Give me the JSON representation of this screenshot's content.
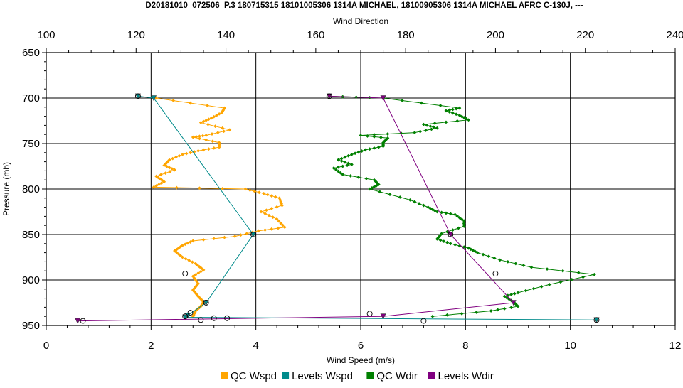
{
  "chart_data": {
    "type": "line",
    "title": "D20181010_072506_P.3 180715315 18101005306 1314A MICHAEL, 18100905306 1314A MICHAEL AFRC C-130J, ---",
    "xlabel_bottom": "Wind Speed (m/s)",
    "xlabel_top": "Wind Direction",
    "ylabel": "Pressure (mb)",
    "xlim_bottom": [
      0,
      12
    ],
    "xlim_top": [
      100,
      240
    ],
    "ylim": [
      650,
      950
    ],
    "y_inverted": true,
    "grid": true,
    "legend_position": "bottom",
    "x_ticks_bottom": [
      "0",
      "2",
      "4",
      "6",
      "8",
      "10",
      "12"
    ],
    "x_ticks_top": [
      "100",
      "120",
      "140",
      "160",
      "180",
      "200",
      "220",
      "240"
    ],
    "y_ticks": [
      "650",
      "700",
      "750",
      "800",
      "850",
      "900",
      "950"
    ],
    "series": [
      {
        "name": "QC Wspd",
        "axis": "bottom",
        "color": "#FFA500",
        "marker": "diamond",
        "points": [
          [
            2.1,
            700
          ],
          [
            3.4,
            711
          ],
          [
            3.35,
            716
          ],
          [
            3.15,
            722
          ],
          [
            2.95,
            727
          ],
          [
            3.5,
            735
          ],
          [
            3.05,
            741
          ],
          [
            2.8,
            743
          ],
          [
            3.3,
            749
          ],
          [
            3.3,
            754
          ],
          [
            2.9,
            758
          ],
          [
            2.6,
            762
          ],
          [
            2.35,
            768
          ],
          [
            2.25,
            774
          ],
          [
            2.45,
            779
          ],
          [
            2.1,
            786
          ],
          [
            2.25,
            792
          ],
          [
            2.05,
            798
          ],
          [
            3.8,
            800
          ],
          [
            4.15,
            805
          ],
          [
            4.45,
            810
          ],
          [
            4.5,
            818
          ],
          [
            4.1,
            825
          ],
          [
            4.4,
            833
          ],
          [
            4.55,
            842
          ],
          [
            4.05,
            846
          ],
          [
            3.6,
            852
          ],
          [
            2.8,
            857
          ],
          [
            2.6,
            862
          ],
          [
            2.45,
            868
          ],
          [
            2.6,
            875
          ],
          [
            2.85,
            882
          ],
          [
            3.0,
            889
          ],
          [
            2.8,
            896
          ],
          [
            2.9,
            904
          ],
          [
            2.8,
            911
          ],
          [
            2.9,
            918
          ],
          [
            3.0,
            924
          ],
          [
            2.95,
            929
          ],
          [
            2.85,
            934
          ],
          [
            2.8,
            940
          ]
        ]
      },
      {
        "name": "Levels Wspd",
        "axis": "bottom",
        "color": "#008B8B",
        "marker": "triangle-down",
        "points": [
          [
            1.75,
            698
          ],
          [
            2.05,
            700
          ],
          [
            3.95,
            850
          ],
          [
            3.05,
            925
          ],
          [
            2.7,
            939
          ],
          [
            2.65,
            941
          ],
          [
            10.5,
            944
          ]
        ]
      },
      {
        "name": "QC Wdir",
        "axis": "top",
        "color": "#008000",
        "marker": "diamond",
        "points": [
          [
            163,
            698
          ],
          [
            175,
            700
          ],
          [
            192,
            711
          ],
          [
            189,
            714
          ],
          [
            192,
            719
          ],
          [
            194,
            724
          ],
          [
            184,
            729
          ],
          [
            187,
            733
          ],
          [
            182,
            738
          ],
          [
            170,
            741
          ],
          [
            176,
            744
          ],
          [
            175,
            749
          ],
          [
            175,
            753
          ],
          [
            171,
            757
          ],
          [
            168,
            762
          ],
          [
            165,
            768
          ],
          [
            168,
            773
          ],
          [
            164,
            777
          ],
          [
            166,
            784
          ],
          [
            173,
            790
          ],
          [
            174,
            795
          ],
          [
            172,
            800
          ],
          [
            181,
            812
          ],
          [
            185,
            820
          ],
          [
            187,
            825
          ],
          [
            191,
            828
          ],
          [
            193,
            835
          ],
          [
            193,
            841
          ],
          [
            188,
            849
          ],
          [
            187,
            855
          ],
          [
            190,
            860
          ],
          [
            194,
            865
          ],
          [
            196,
            870
          ],
          [
            201,
            878
          ],
          [
            208,
            886
          ],
          [
            222,
            894
          ],
          [
            212,
            905
          ],
          [
            205,
            914
          ],
          [
            202,
            918
          ],
          [
            204,
            924
          ],
          [
            205,
            929
          ],
          [
            199,
            934
          ],
          [
            186,
            940
          ]
        ]
      },
      {
        "name": "Levels Wdir",
        "axis": "top",
        "color": "#800080",
        "marker": "triangle-down",
        "points": [
          [
            163,
            698
          ],
          [
            175,
            700
          ],
          [
            190,
            850
          ],
          [
            204,
            925
          ],
          [
            175,
            940
          ],
          [
            107,
            945
          ]
        ]
      }
    ],
    "level_markers": [
      {
        "axis": "bottom",
        "x": 1.75,
        "y": 698
      },
      {
        "axis": "bottom",
        "x": 3.95,
        "y": 850
      },
      {
        "axis": "bottom",
        "x": 2.65,
        "y": 893
      },
      {
        "axis": "bottom",
        "x": 3.05,
        "y": 925
      },
      {
        "axis": "bottom",
        "x": 2.75,
        "y": 936
      },
      {
        "axis": "bottom",
        "x": 2.65,
        "y": 940
      },
      {
        "axis": "bottom",
        "x": 2.95,
        "y": 944
      },
      {
        "axis": "bottom",
        "x": 3.2,
        "y": 942
      },
      {
        "axis": "bottom",
        "x": 3.45,
        "y": 942
      },
      {
        "axis": "bottom",
        "x": 10.5,
        "y": 944
      },
      {
        "axis": "bottom",
        "x": 0.7,
        "y": 945
      },
      {
        "axis": "top",
        "x": 163,
        "y": 698
      },
      {
        "axis": "top",
        "x": 190,
        "y": 850
      },
      {
        "axis": "top",
        "x": 200,
        "y": 893
      },
      {
        "axis": "top",
        "x": 172,
        "y": 937
      },
      {
        "axis": "top",
        "x": 184,
        "y": 945
      }
    ]
  }
}
